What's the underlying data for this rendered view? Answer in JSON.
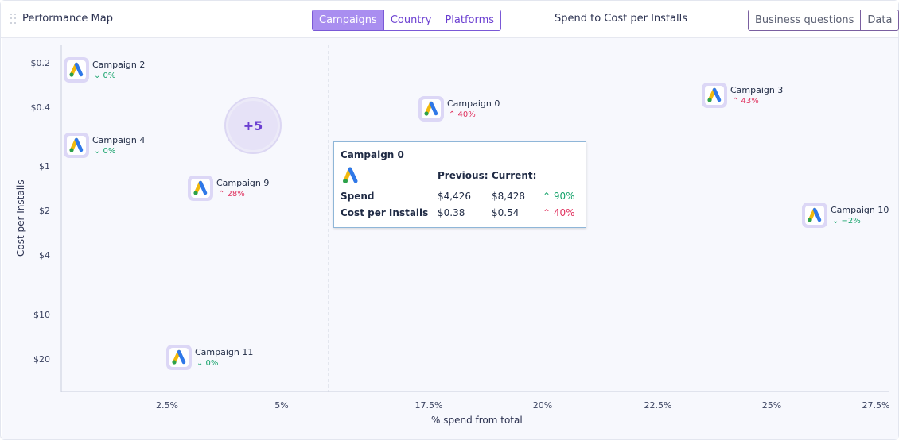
{
  "header": {
    "title": "Performance Map",
    "tabs": [
      {
        "label": "Campaigns",
        "active": true
      },
      {
        "label": "Country",
        "active": false
      },
      {
        "label": "Platforms",
        "active": false
      }
    ],
    "chart_title": "Spend to Cost per Installs",
    "actions": [
      {
        "label": "Business questions"
      },
      {
        "label": "Data"
      }
    ]
  },
  "colors": {
    "accent": "#7a59d6",
    "positive": "#16a36b",
    "negative": "#e0305d"
  },
  "tooltip": {
    "campaign": "Campaign 0",
    "icon": "google-ads-icon",
    "col_previous": "Previous:",
    "col_current": "Current:",
    "rows": [
      {
        "label": "Spend",
        "previous": "$4,426",
        "current": "$8,428",
        "change": "90%",
        "direction": "up",
        "sentiment": "positive"
      },
      {
        "label": "Cost per Installs",
        "previous": "$0.38",
        "current": "$0.54",
        "change": "40%",
        "direction": "up",
        "sentiment": "negative"
      }
    ]
  },
  "chart_data": {
    "type": "scatter",
    "title": "Spend to Cost per Installs",
    "xlabel": "% spend from total",
    "ylabel": "Cost per Installs",
    "x_ticks": [
      "2.5%",
      "5%",
      "17.5%",
      "20%",
      "22.5%",
      "25%",
      "27.5%"
    ],
    "y_ticks": [
      "$0.2",
      "$0.4",
      "$1",
      "$2",
      "$4",
      "$10",
      "$20"
    ],
    "y_scale": "log",
    "y_reversed": true,
    "x_axis_break": "between 5% and 17.5%",
    "cluster": {
      "label": "+5"
    },
    "points": [
      {
        "name": "Campaign 2",
        "change": "0%",
        "direction": "down",
        "sentiment": "positive"
      },
      {
        "name": "Campaign 0",
        "change": "40%",
        "direction": "up",
        "sentiment": "negative"
      },
      {
        "name": "Campaign 3",
        "change": "43%",
        "direction": "up",
        "sentiment": "negative"
      },
      {
        "name": "Campaign 4",
        "change": "0%",
        "direction": "down",
        "sentiment": "positive"
      },
      {
        "name": "Campaign 9",
        "change": "28%",
        "direction": "up",
        "sentiment": "negative"
      },
      {
        "name": "Campaign 10",
        "change": "−2%",
        "direction": "down",
        "sentiment": "positive"
      },
      {
        "name": "Campaign 11",
        "change": "0%",
        "direction": "down",
        "sentiment": "positive"
      }
    ]
  }
}
